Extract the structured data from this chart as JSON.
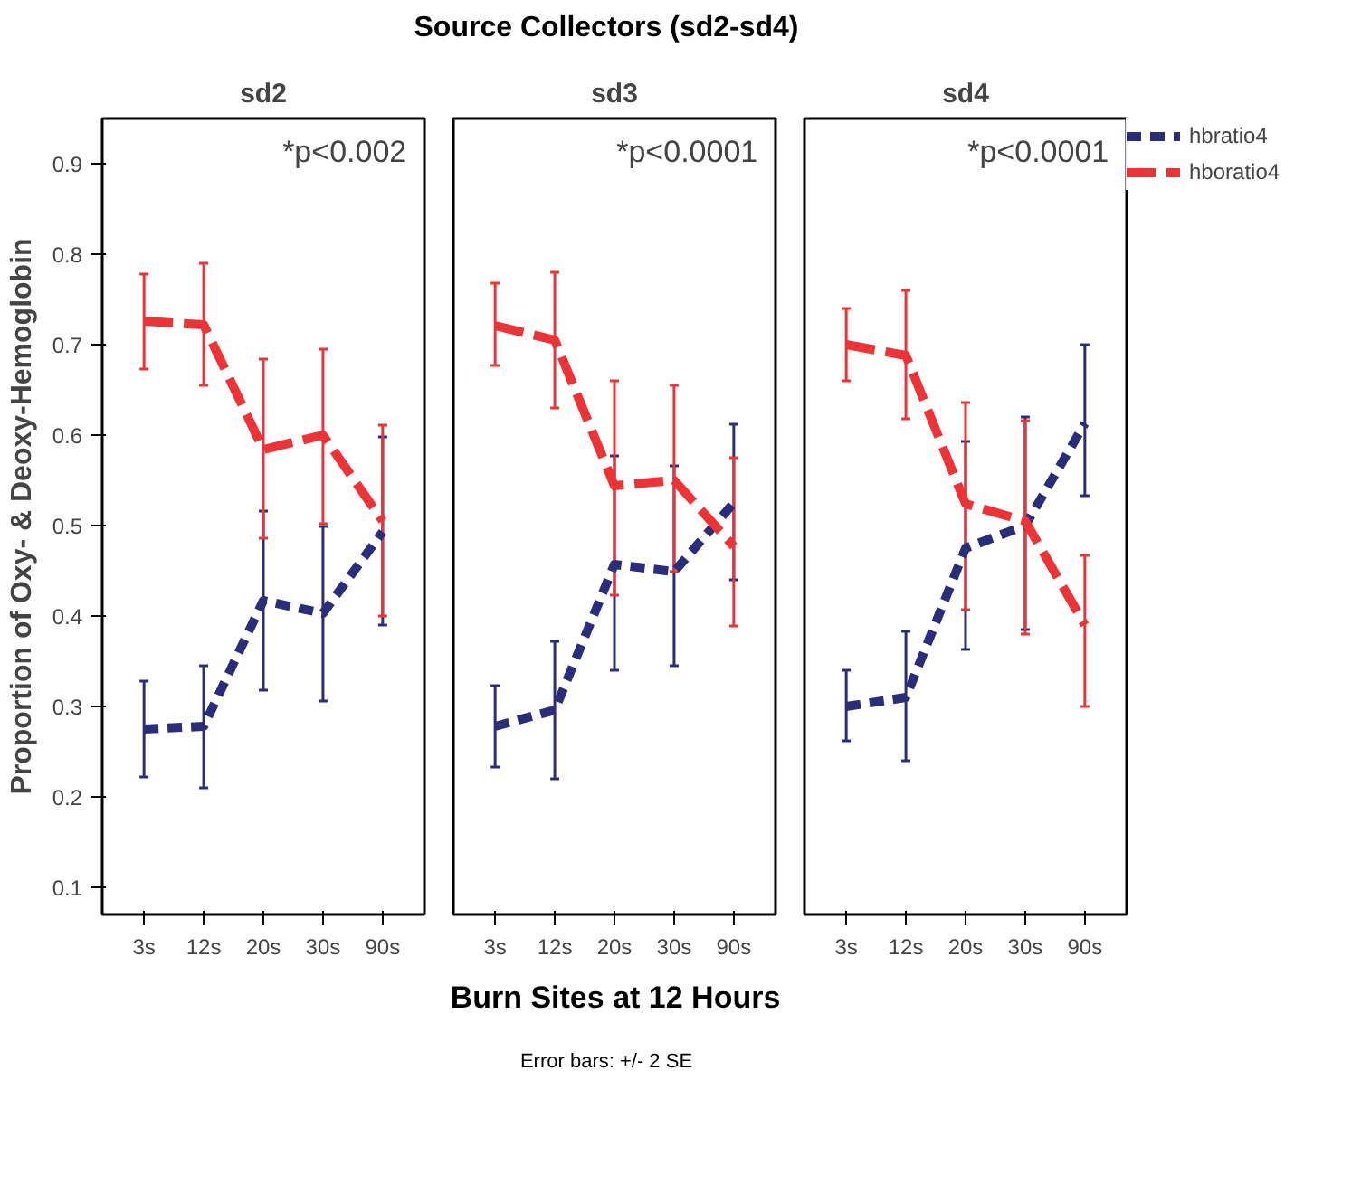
{
  "chart_data": [
    {
      "type": "other",
      "title": "Source Collectors (sd2-sd4)",
      "annotations": [
        "Error bars: +/- 2 SE"
      ]
    },
    {
      "type": "line",
      "title": "sd2",
      "ylabel": "Proportion of Oxy- & Deoxy-Hemoglobin",
      "categories": [
        "3s",
        "12s",
        "20s",
        "30s",
        "90s"
      ],
      "ylim": [
        0.07,
        0.95
      ],
      "yticks": [
        0.1,
        0.2,
        0.3,
        0.4,
        0.5,
        0.6,
        0.7,
        0.8,
        0.9
      ],
      "grid": false,
      "legend": false,
      "line_style": "dashed",
      "marker": "none",
      "annotations": [
        "*p<0.002"
      ],
      "series": [
        {
          "color": "#2a2e7a",
          "values": [
            0.275,
            0.278,
            0.417,
            0.403,
            0.493
          ],
          "errors": [
            [
              0.222,
              0.328
            ],
            [
              0.21,
              0.345
            ],
            [
              0.318,
              0.516
            ],
            [
              0.306,
              0.499
            ],
            [
              0.39,
              0.598
            ]
          ]
        },
        {
          "color": "#ee3337",
          "values": [
            0.726,
            0.722,
            0.584,
            0.6,
            0.505
          ],
          "errors": [
            [
              0.673,
              0.778
            ],
            [
              0.655,
              0.79
            ],
            [
              0.486,
              0.684
            ],
            [
              0.502,
              0.695
            ],
            [
              0.4,
              0.611
            ]
          ]
        }
      ]
    },
    {
      "type": "line",
      "title": "sd3",
      "xlabel": "Burn Sites at 12 Hours",
      "categories": [
        "3s",
        "12s",
        "20s",
        "30s",
        "90s"
      ],
      "ylim": [
        0.07,
        0.95
      ],
      "yticks": [
        0.1,
        0.2,
        0.3,
        0.4,
        0.5,
        0.6,
        0.7,
        0.8,
        0.9
      ],
      "tick_labels": "x",
      "grid": false,
      "legend": false,
      "line_style": "dashed",
      "marker": "none",
      "annotations": [
        "*p<0.0001"
      ],
      "series": [
        {
          "color": "#2a2e7a",
          "values": [
            0.278,
            0.296,
            0.457,
            0.449,
            0.525
          ],
          "errors": [
            [
              0.233,
              0.323
            ],
            [
              0.22,
              0.372
            ],
            [
              0.34,
              0.577
            ],
            [
              0.345,
              0.566
            ],
            [
              0.44,
              0.612
            ]
          ]
        },
        {
          "color": "#ee3337",
          "values": [
            0.721,
            0.705,
            0.544,
            0.55,
            0.477
          ],
          "errors": [
            [
              0.677,
              0.768
            ],
            [
              0.63,
              0.78
            ],
            [
              0.423,
              0.66
            ],
            [
              0.449,
              0.655
            ],
            [
              0.389,
              0.575
            ]
          ]
        }
      ]
    },
    {
      "type": "line",
      "title": "sd4",
      "categories": [
        "3s",
        "12s",
        "20s",
        "30s",
        "90s"
      ],
      "ylim": [
        0.07,
        0.95
      ],
      "yticks": [
        0.1,
        0.2,
        0.3,
        0.4,
        0.5,
        0.6,
        0.7,
        0.8,
        0.9
      ],
      "tick_labels": "x",
      "grid": false,
      "legend": "right",
      "line_style": "dashed",
      "marker": "none",
      "annotations": [
        "*p<0.0001"
      ],
      "series": [
        {
          "name": "hbratio4",
          "color": "#2a2e7a",
          "values": [
            0.3,
            0.31,
            0.475,
            0.5,
            0.613
          ],
          "errors": [
            [
              0.262,
              0.34
            ],
            [
              0.24,
              0.383
            ],
            [
              0.363,
              0.593
            ],
            [
              0.385,
              0.62
            ],
            [
              0.533,
              0.7
            ]
          ]
        },
        {
          "name": "hboratio4",
          "color": "#ee3337",
          "values": [
            0.7,
            0.688,
            0.524,
            0.505,
            0.39
          ],
          "errors": [
            [
              0.66,
              0.74
            ],
            [
              0.618,
              0.76
            ],
            [
              0.407,
              0.636
            ],
            [
              0.38,
              0.616
            ],
            [
              0.3,
              0.467
            ]
          ]
        }
      ]
    }
  ]
}
